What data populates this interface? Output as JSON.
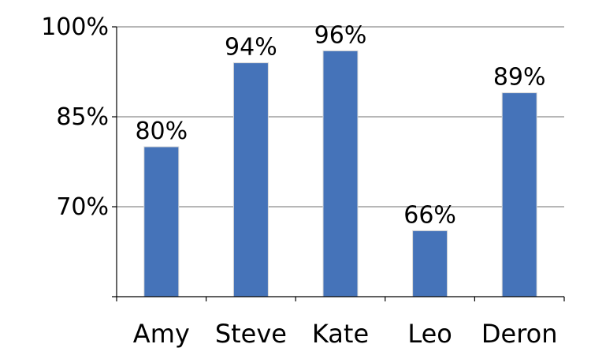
{
  "chart_data": {
    "type": "bar",
    "title": "",
    "xlabel": "",
    "ylabel": "",
    "categories": [
      "Amy",
      "Steve",
      "Kate",
      "Leo",
      "Deron"
    ],
    "values": [
      80,
      94,
      96,
      66,
      89
    ],
    "data_labels": [
      "80%",
      "94%",
      "96%",
      "66%",
      "89%"
    ],
    "ylim": [
      55,
      100
    ],
    "y_ticks": [
      70,
      85,
      100
    ],
    "y_tick_labels": [
      "70%",
      "85%",
      "100%"
    ],
    "grid": true,
    "legend": "none",
    "bar_color": "#4573B9",
    "grid_color": "#8C8C8C"
  }
}
